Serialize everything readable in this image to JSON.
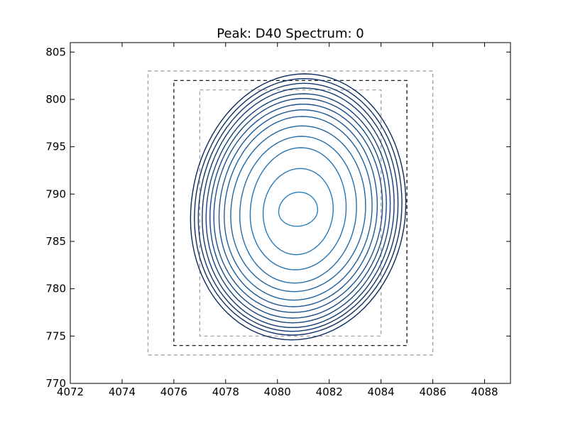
{
  "chart_data": {
    "type": "contour",
    "title": "Peak: D40 Spectrum: 0",
    "xlabel": "",
    "ylabel": "",
    "xlim": [
      4072,
      4089
    ],
    "ylim": [
      770,
      806
    ],
    "xticks": [
      4072,
      4074,
      4076,
      4078,
      4080,
      4082,
      4084,
      4086,
      4088
    ],
    "yticks": [
      770,
      775,
      780,
      785,
      790,
      795,
      800,
      805
    ],
    "grid": false,
    "colors": {
      "outer_contour": "#0b2a5e",
      "inner_contour": "#2a82c2",
      "outer_box": "#999999",
      "middle_box": "#000000",
      "inner_box": "#999999"
    },
    "boxes": [
      {
        "role": "outer-region",
        "x0": 4075,
        "x1": 4086,
        "y0": 773,
        "y1": 803,
        "style": "dashed",
        "color": "#999999"
      },
      {
        "role": "peak-region",
        "x0": 4076,
        "x1": 4085,
        "y0": 774,
        "y1": 802,
        "style": "dashed",
        "color": "#000000"
      },
      {
        "role": "inner-region",
        "x0": 4077,
        "x1": 4084,
        "y0": 775,
        "y1": 801,
        "style": "dashed",
        "color": "#999999"
      }
    ],
    "contours": {
      "center": [
        4080.8,
        788.2
      ],
      "levels": [
        {
          "rx": 0.75,
          "ryTop": 2.0,
          "ryBot": 1.6
        },
        {
          "rx": 1.35,
          "ryTop": 4.5,
          "ryBot": 4.6
        },
        {
          "rx": 1.85,
          "ryTop": 6.7,
          "ryBot": 6.2
        },
        {
          "rx": 2.25,
          "ryTop": 7.9,
          "ryBot": 7.6
        },
        {
          "rx": 2.6,
          "ryTop": 9.0,
          "ryBot": 8.5
        },
        {
          "rx": 2.85,
          "ryTop": 10.0,
          "ryBot": 9.4
        },
        {
          "rx": 3.05,
          "ryTop": 10.7,
          "ryBot": 10.1
        },
        {
          "rx": 3.25,
          "ryTop": 11.3,
          "ryBot": 10.7
        },
        {
          "rx": 3.4,
          "ryTop": 11.9,
          "ryBot": 11.3
        },
        {
          "rx": 3.55,
          "ryTop": 12.4,
          "ryBot": 11.8
        },
        {
          "rx": 3.7,
          "ryTop": 13.0,
          "ryBot": 12.3
        },
        {
          "rx": 3.85,
          "ryTop": 13.5,
          "ryBot": 12.7
        },
        {
          "rx": 4.0,
          "ryTop": 14.0,
          "ryBot": 13.1
        },
        {
          "rx": 4.15,
          "ryTop": 14.5,
          "ryBot": 13.6
        }
      ]
    }
  }
}
